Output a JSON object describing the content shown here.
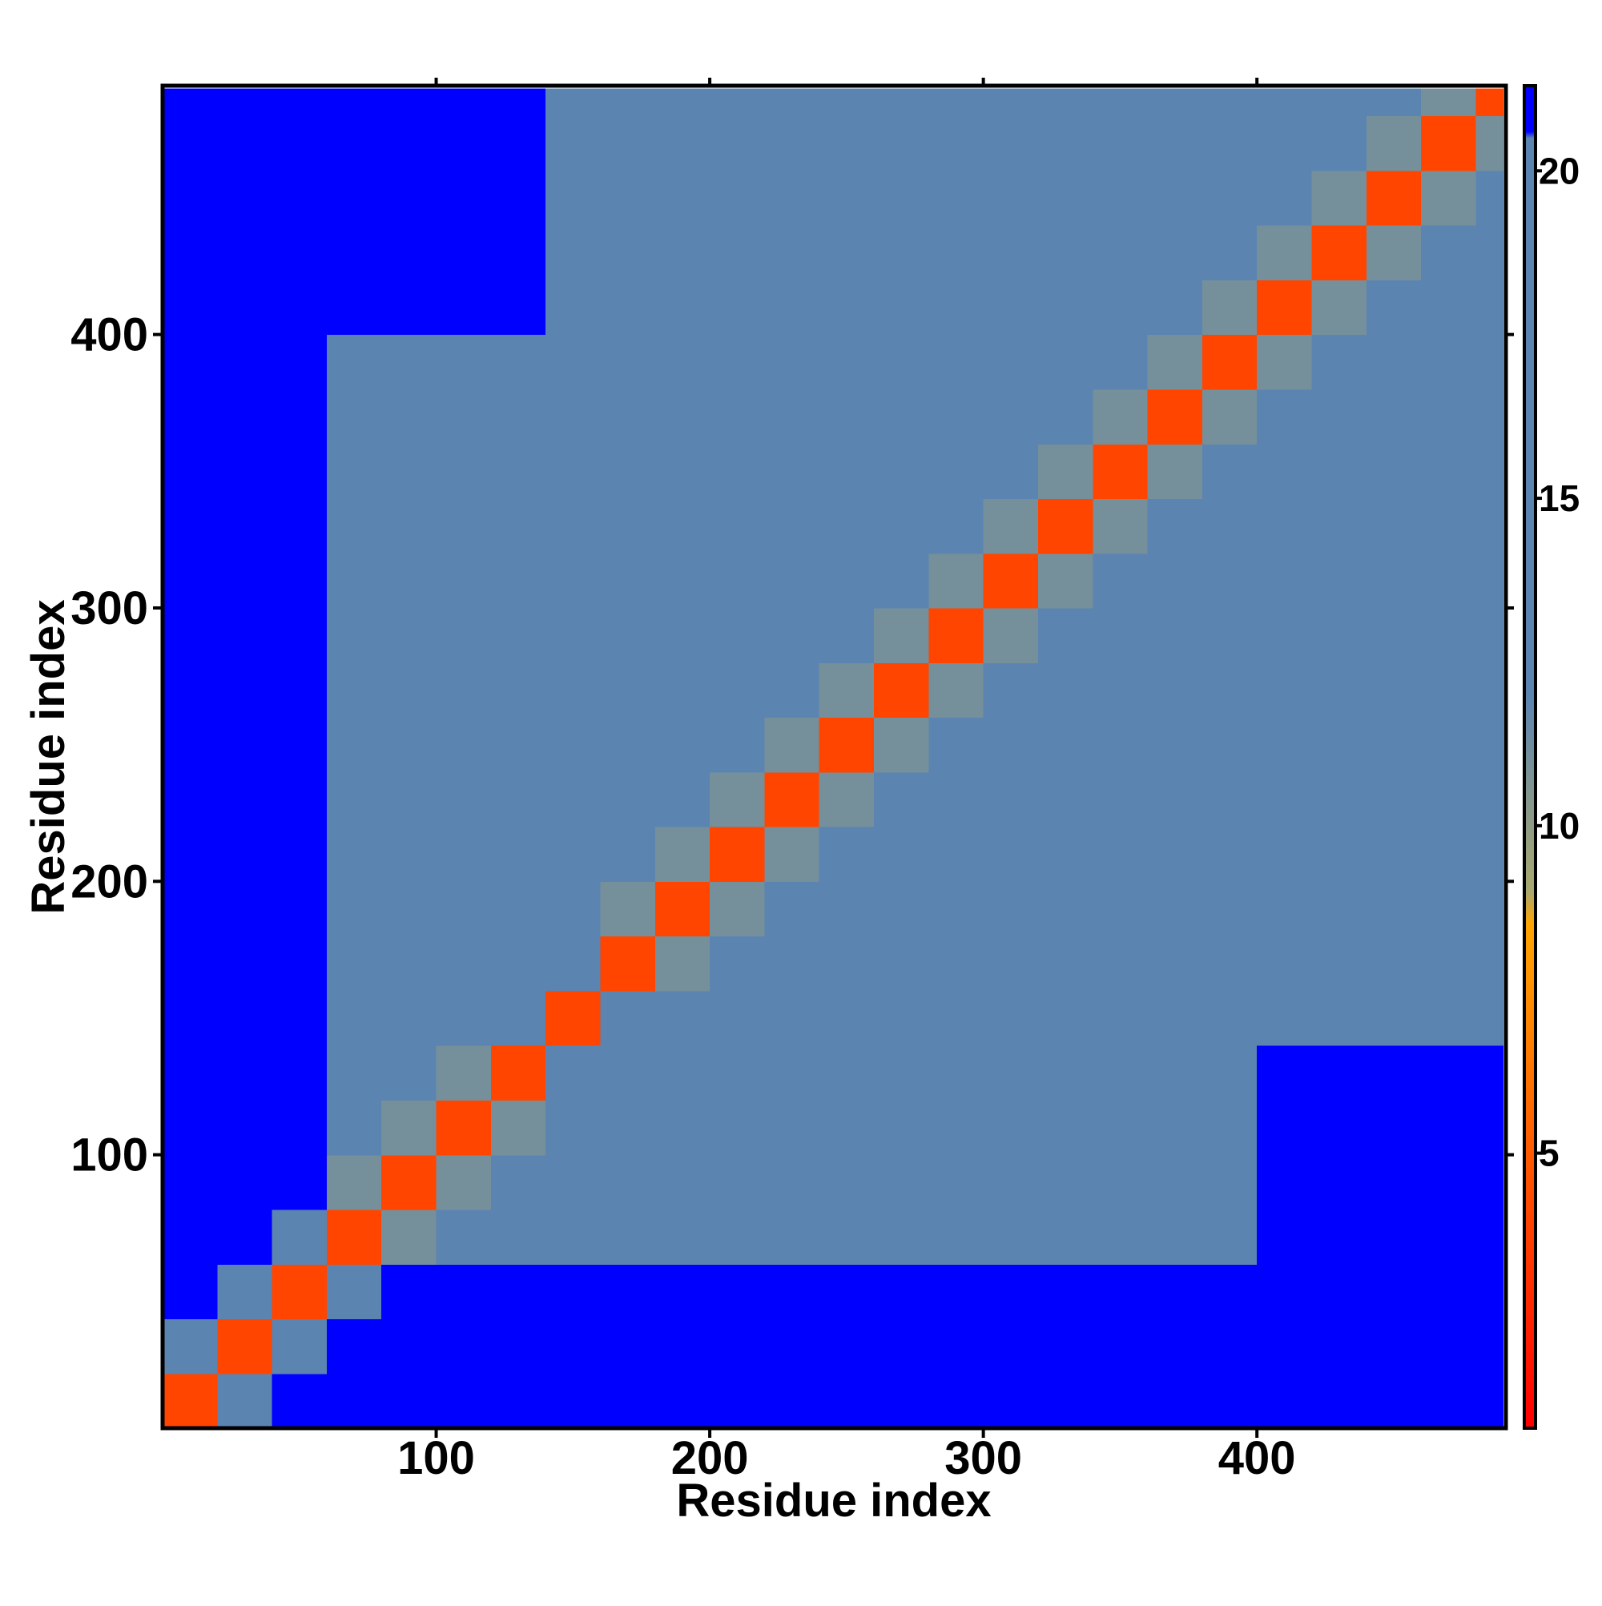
{
  "chart_data": {
    "type": "heatmap",
    "x_label": "Residue index",
    "y_label": "Residue index",
    "x_bins": [
      0,
      20,
      40,
      60,
      80,
      100,
      120,
      140,
      160,
      180,
      200,
      220,
      240,
      260,
      280,
      300,
      320,
      340,
      360,
      380,
      400,
      420,
      440,
      460,
      480,
      490
    ],
    "y_bins": [
      0,
      20,
      40,
      60,
      80,
      100,
      120,
      140,
      160,
      180,
      200,
      220,
      240,
      260,
      280,
      300,
      320,
      340,
      360,
      380,
      400,
      420,
      440,
      460,
      480,
      490
    ],
    "values": [
      [
        4,
        14,
        21,
        21,
        21,
        21,
        21,
        21,
        21,
        21,
        21,
        21,
        21,
        21,
        21,
        21,
        21,
        21,
        21,
        21,
        21,
        21,
        21,
        21,
        21
      ],
      [
        14,
        4,
        14,
        21,
        21,
        21,
        21,
        21,
        21,
        21,
        21,
        21,
        21,
        21,
        21,
        21,
        21,
        21,
        21,
        21,
        21,
        21,
        21,
        21,
        21
      ],
      [
        21,
        14,
        4,
        14,
        21,
        21,
        21,
        21,
        21,
        21,
        21,
        21,
        21,
        21,
        21,
        21,
        21,
        21,
        21,
        21,
        21,
        21,
        21,
        21,
        21
      ],
      [
        21,
        21,
        14,
        4,
        11,
        14,
        14,
        19,
        20,
        20,
        20,
        20,
        20,
        20,
        20,
        20,
        20,
        20,
        20,
        20,
        21,
        21,
        21,
        21,
        21
      ],
      [
        21,
        21,
        21,
        11,
        4,
        11,
        14,
        19,
        20,
        20,
        20,
        20,
        20,
        20,
        20,
        20,
        20,
        20,
        20,
        20,
        21,
        21,
        21,
        21,
        21
      ],
      [
        21,
        21,
        21,
        14,
        11,
        4,
        11,
        19,
        20,
        20,
        20,
        20,
        20,
        20,
        20,
        20,
        20,
        20,
        20,
        20,
        21,
        21,
        21,
        21,
        21
      ],
      [
        21,
        21,
        21,
        14,
        14,
        11,
        4,
        13,
        20,
        20,
        20,
        20,
        20,
        20,
        20,
        20,
        20,
        20,
        20,
        20,
        21,
        21,
        21,
        21,
        21
      ],
      [
        21,
        21,
        21,
        19,
        19,
        19,
        13,
        4,
        13,
        18,
        18,
        18,
        18,
        18,
        18,
        18,
        18,
        18,
        18,
        18,
        18,
        18,
        18,
        18,
        18
      ],
      [
        21,
        21,
        21,
        20,
        20,
        20,
        20,
        13,
        4,
        11,
        16,
        16,
        16,
        16,
        16,
        16,
        16,
        16,
        16,
        16,
        17,
        17,
        17,
        17,
        18
      ],
      [
        21,
        21,
        21,
        20,
        20,
        20,
        20,
        18,
        11,
        4,
        11,
        16,
        12,
        16,
        16,
        16,
        16,
        16,
        16,
        16,
        16,
        17,
        17,
        17,
        18
      ],
      [
        21,
        21,
        21,
        20,
        20,
        20,
        20,
        18,
        16,
        11,
        4,
        11,
        16,
        12,
        16,
        16,
        16,
        16,
        16,
        16,
        16,
        16,
        17,
        17,
        18
      ],
      [
        21,
        21,
        21,
        20,
        20,
        20,
        20,
        18,
        16,
        16,
        11,
        4,
        11,
        16,
        16,
        12,
        16,
        16,
        16,
        16,
        16,
        16,
        16,
        17,
        18
      ],
      [
        21,
        21,
        21,
        20,
        20,
        20,
        20,
        18,
        16,
        12,
        16,
        11,
        4,
        11,
        16,
        16,
        16,
        12,
        16,
        16,
        16,
        16,
        16,
        16,
        18
      ],
      [
        21,
        21,
        21,
        20,
        20,
        20,
        20,
        18,
        16,
        16,
        12,
        16,
        11,
        4,
        11,
        16,
        12,
        16,
        16,
        16,
        16,
        16,
        16,
        16,
        18
      ],
      [
        21,
        21,
        21,
        20,
        20,
        20,
        20,
        18,
        16,
        16,
        16,
        16,
        16,
        11,
        4,
        11,
        16,
        16,
        12,
        16,
        16,
        16,
        16,
        16,
        18
      ],
      [
        21,
        21,
        21,
        20,
        20,
        20,
        20,
        18,
        16,
        16,
        16,
        12,
        16,
        16,
        11,
        4,
        11,
        16,
        16,
        16,
        16,
        16,
        16,
        16,
        18
      ],
      [
        21,
        21,
        21,
        20,
        20,
        20,
        20,
        18,
        16,
        16,
        16,
        16,
        16,
        12,
        16,
        11,
        4,
        11,
        16,
        16,
        16,
        16,
        16,
        16,
        18
      ],
      [
        21,
        21,
        21,
        20,
        20,
        20,
        20,
        18,
        16,
        16,
        16,
        16,
        12,
        16,
        16,
        16,
        11,
        4,
        11,
        16,
        16,
        12,
        16,
        16,
        18
      ],
      [
        21,
        21,
        21,
        20,
        20,
        20,
        20,
        18,
        16,
        16,
        16,
        16,
        16,
        16,
        12,
        16,
        16,
        11,
        4,
        11,
        16,
        16,
        16,
        16,
        18
      ],
      [
        21,
        21,
        21,
        20,
        20,
        20,
        20,
        18,
        16,
        16,
        16,
        16,
        16,
        16,
        16,
        16,
        16,
        16,
        11,
        4,
        11,
        16,
        12,
        16,
        18
      ],
      [
        21,
        21,
        21,
        21,
        21,
        21,
        21,
        18,
        17,
        16,
        16,
        16,
        16,
        16,
        16,
        16,
        16,
        16,
        16,
        11,
        4,
        11,
        16,
        16,
        18
      ],
      [
        21,
        21,
        21,
        21,
        21,
        21,
        21,
        18,
        17,
        17,
        16,
        16,
        16,
        16,
        16,
        16,
        16,
        12,
        16,
        16,
        11,
        4,
        11,
        16,
        18
      ],
      [
        21,
        21,
        21,
        21,
        21,
        21,
        21,
        18,
        17,
        17,
        17,
        16,
        16,
        16,
        16,
        16,
        16,
        16,
        16,
        12,
        16,
        11,
        4,
        11,
        18
      ],
      [
        21,
        21,
        21,
        21,
        21,
        21,
        21,
        18,
        17,
        17,
        17,
        17,
        16,
        16,
        16,
        16,
        16,
        16,
        16,
        16,
        16,
        16,
        11,
        4,
        11
      ],
      [
        21,
        21,
        21,
        21,
        21,
        21,
        21,
        18,
        18,
        18,
        18,
        18,
        18,
        18,
        18,
        18,
        18,
        18,
        18,
        18,
        18,
        18,
        18,
        11,
        4
      ]
    ],
    "xlim": [
      0,
      491
    ],
    "ylim": [
      0,
      491
    ],
    "xticks": [
      100,
      200,
      300,
      400
    ],
    "yticks": [
      100,
      200,
      300,
      400
    ],
    "zlim": [
      0.8,
      21.3
    ],
    "zticks": [
      5,
      10,
      15,
      20
    ],
    "colorscale": [
      {
        "value": 0.8,
        "color": "#ff0000"
      },
      {
        "value": 5,
        "color": "#ff5a00"
      },
      {
        "value": 8.5,
        "color": "#ffa500"
      },
      {
        "value": 9,
        "color": "#a9a86e"
      },
      {
        "value": 12,
        "color": "#5b84b1"
      },
      {
        "value": 20.5,
        "color": "#5b84b1"
      },
      {
        "value": 20.6,
        "color": "#0000ff"
      }
    ]
  }
}
